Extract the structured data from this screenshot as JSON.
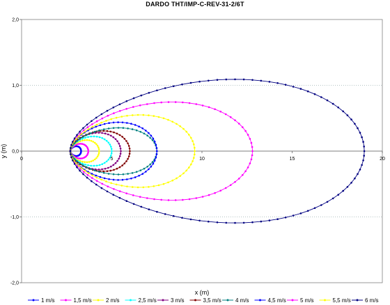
{
  "chart_data": {
    "type": "scatter",
    "title": "DARDO THT/IMP-C-REV-31-2/6T",
    "xlabel": "x (m)",
    "ylabel": "y (m)",
    "xlim": [
      0,
      20
    ],
    "ylim": [
      -2.0,
      2.0
    ],
    "xticks": [
      "0",
      "5",
      "10",
      "15",
      "20"
    ],
    "yticks": [
      "2,0",
      "1,0",
      "0,0",
      "-1,0",
      "-2,0"
    ],
    "grid": "horizontal dotted",
    "legend_position": "bottom",
    "series": [
      {
        "name": "1 m/s",
        "color": "#0000ff",
        "x0": 2.7,
        "xmax": 3.3,
        "ymax": 0.08,
        "npts": 16
      },
      {
        "name": "1,5 m/s",
        "color": "#ff00ff",
        "x0": 2.7,
        "xmax": 3.7,
        "ymax": 0.12,
        "npts": 18
      },
      {
        "name": "2 m/s",
        "color": "#ffff00",
        "x0": 2.7,
        "xmax": 4.3,
        "ymax": 0.18,
        "npts": 20
      },
      {
        "name": "2,5 m/s",
        "color": "#00ffff",
        "x0": 2.7,
        "xmax": 5.0,
        "ymax": 0.24,
        "npts": 22
      },
      {
        "name": "3 m/s",
        "color": "#800080",
        "x0": 2.7,
        "xmax": 5.5,
        "ymax": 0.3,
        "npts": 24
      },
      {
        "name": "3,5 m/s",
        "color": "#800000",
        "x0": 2.7,
        "xmax": 6.0,
        "ymax": 0.33,
        "npts": 26
      },
      {
        "name": "4 m/s",
        "color": "#008080",
        "x0": 2.7,
        "xmax": 7.5,
        "ymax": 0.38,
        "npts": 28
      },
      {
        "name": "4,5 m/s",
        "color": "#0000ff",
        "x0": 2.7,
        "xmax": 7.5,
        "ymax": 0.47,
        "npts": 30
      },
      {
        "name": "5 m/s",
        "color": "#ff00ff",
        "x0": 2.7,
        "xmax": 12.8,
        "ymax": 0.8,
        "npts": 40
      },
      {
        "name": "5,5 m/s",
        "color": "#ffff00",
        "x0": 2.7,
        "xmax": 9.6,
        "ymax": 0.59,
        "npts": 36
      },
      {
        "name": "6 m/s",
        "color": "#000080",
        "x0": 2.7,
        "xmax": 19.0,
        "ymax": 1.17,
        "npts": 52
      }
    ]
  }
}
